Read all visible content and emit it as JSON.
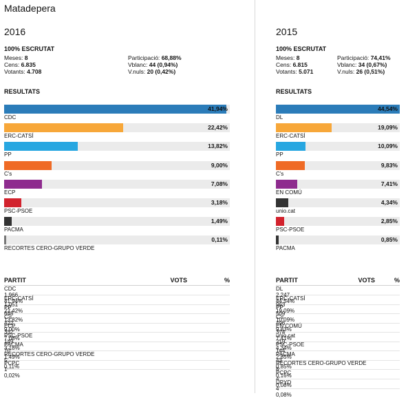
{
  "page": {
    "title": "Matadepera"
  },
  "labels": {
    "escrutat": "100% ESCRUTAT",
    "resultats": "RESULTATS",
    "meses": "Meses:",
    "cens": "Cens:",
    "votants": "Votants:",
    "participacio": "Participació:",
    "vblanc": "Vblanc:",
    "vnuls": "V.nuls:",
    "partit": "PARTIT",
    "vots": "VOTS",
    "pct": "%"
  },
  "left": {
    "year": "2016",
    "stats": {
      "meses": "8",
      "cens": "6.835",
      "votants": "4.708",
      "participacio": "68,88%",
      "vblanc": "44 (0,94%)",
      "vnuls": "20 (0,42%)"
    },
    "bars": [
      {
        "name": "CDC",
        "pct": "41,94%",
        "value": 41.94,
        "color": "#2b7cb9"
      },
      {
        "name": "ERC-CATSÍ",
        "pct": "22,42%",
        "value": 22.42,
        "color": "#f7a739"
      },
      {
        "name": "PP",
        "pct": "13,82%",
        "value": 13.82,
        "color": "#28a7e1"
      },
      {
        "name": "C's",
        "pct": "9,00%",
        "value": 9.0,
        "color": "#ef6a25"
      },
      {
        "name": "ECP",
        "pct": "7,08%",
        "value": 7.08,
        "color": "#8e2b8e"
      },
      {
        "name": "PSC-PSOE",
        "pct": "3,18%",
        "value": 3.18,
        "color": "#d2222d"
      },
      {
        "name": "PACMA",
        "pct": "1,49%",
        "value": 1.49,
        "color": "#333333"
      },
      {
        "name": "RECORTES CERO-GRUPO VERDE",
        "pct": "0,11%",
        "value": 0.11,
        "color": "#777777"
      }
    ],
    "table": [
      {
        "partit": "CDC",
        "vots": "1.966",
        "pct": "41,94%"
      },
      {
        "partit": "ERC-CATSÍ",
        "vots": "1.051",
        "pct": "22,42%"
      },
      {
        "partit": "PP",
        "vots": "648",
        "pct": "13,82%"
      },
      {
        "partit": "C's",
        "vots": "422",
        "pct": "9,00%"
      },
      {
        "partit": "ECP",
        "vots": "332",
        "pct": "7,08%"
      },
      {
        "partit": "PSC-PSOE",
        "vots": "149",
        "pct": "3,18%"
      },
      {
        "partit": "PACMA",
        "vots": "70",
        "pct": "1,49%"
      },
      {
        "partit": "RECORTES CERO-GRUPO VERDE",
        "vots": "5",
        "pct": "0,11%"
      },
      {
        "partit": "PCPC",
        "vots": "1",
        "pct": "0,02%"
      }
    ]
  },
  "right": {
    "year": "2015",
    "stats": {
      "meses": "8",
      "cens": "6.815",
      "votants": "5.071",
      "participacio": "74,41%",
      "vblanc": "34 (0,67%)",
      "vnuls": "26 (0,51%)"
    },
    "bars": [
      {
        "name": "DL",
        "pct": "44,54%",
        "value": 44.54,
        "color": "#2b7cb9"
      },
      {
        "name": "ERC-CATSÍ",
        "pct": "19,09%",
        "value": 19.09,
        "color": "#f7a739"
      },
      {
        "name": "PP",
        "pct": "10,09%",
        "value": 10.09,
        "color": "#28a7e1"
      },
      {
        "name": "C's",
        "pct": "9,83%",
        "value": 9.83,
        "color": "#ef6a25"
      },
      {
        "name": "EN COMÚ",
        "pct": "7,41%",
        "value": 7.41,
        "color": "#8e2b8e"
      },
      {
        "name": "unio.cat",
        "pct": "4,34%",
        "value": 4.34,
        "color": "#333333"
      },
      {
        "name": "PSC-PSOE",
        "pct": "2,85%",
        "value": 2.85,
        "color": "#d2222d"
      },
      {
        "name": "PACMA",
        "pct": "0,85%",
        "value": 0.85,
        "color": "#333333"
      }
    ],
    "table": [
      {
        "partit": "DL",
        "vots": "2.247",
        "pct": "44,54%"
      },
      {
        "partit": "ERC-CATSÍ",
        "vots": "963",
        "pct": "19,09%"
      },
      {
        "partit": "PP",
        "vots": "509",
        "pct": "10,09%"
      },
      {
        "partit": "C's",
        "vots": "496",
        "pct": "9,83%"
      },
      {
        "partit": "EN COMÚ",
        "vots": "374",
        "pct": "7,41%"
      },
      {
        "partit": "unio.cat",
        "vots": "219",
        "pct": "4,34%"
      },
      {
        "partit": "PSC-PSOE",
        "vots": "144",
        "pct": "2,85%"
      },
      {
        "partit": "PACMA",
        "vots": "43",
        "pct": "0,85%"
      },
      {
        "partit": "RECORTES CERO-GRUPO VERDE",
        "vots": "8",
        "pct": "0,16%"
      },
      {
        "partit": "PCPC",
        "vots": "4",
        "pct": "0,08%"
      },
      {
        "partit": "UPYD",
        "vots": "4",
        "pct": "0,08%"
      }
    ]
  }
}
